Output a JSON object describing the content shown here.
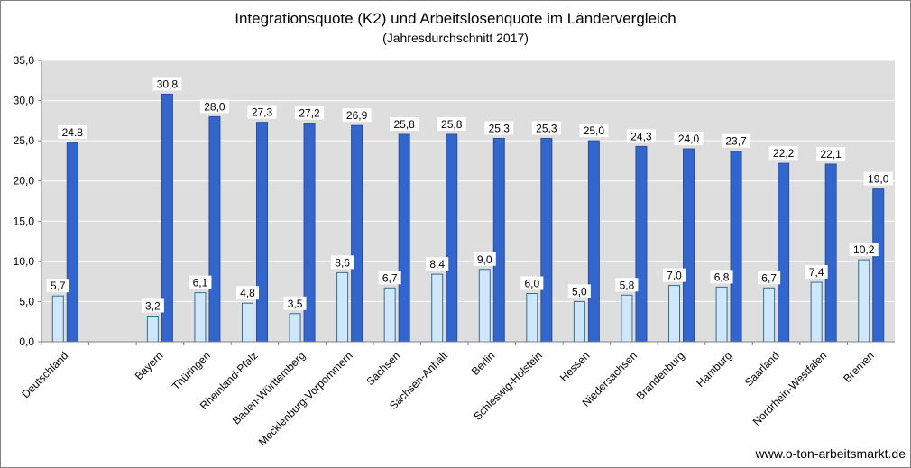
{
  "title": "Integrationsquote (K2)  und Arbeitslosenquote im Ländervergleich",
  "subtitle": "(Jahresdurchschnitt  2017)",
  "credit": "www.o-ton-arbeitsmarkt.de",
  "chart_data": {
    "type": "bar",
    "categories": [
      "Deutschland",
      "",
      "Bayern",
      "Thüringen",
      "Rheinland-Pfalz",
      "Baden-Württemberg",
      "Mecklenburg-Vorpommern",
      "Sachsen",
      "Sachsen-Anhalt",
      "Berlin",
      "Schleswig-Holstein",
      "Hessen",
      "Niedersachsen",
      "Brandenburg",
      "Hamburg",
      "Saarland",
      "Nordrhein-Westfalen",
      "Bremen"
    ],
    "series": [
      {
        "color": "#cfe6fb",
        "values": [
          5.7,
          null,
          3.2,
          6.1,
          4.8,
          3.5,
          8.6,
          6.7,
          8.4,
          9.0,
          6.0,
          5.0,
          5.8,
          7.0,
          6.8,
          6.7,
          7.4,
          10.2
        ],
        "labels": [
          "5,7",
          "",
          "3,2",
          "6,1",
          "4,8",
          "3,5",
          "8,6",
          "6,7",
          "8,4",
          "9,0",
          "6,0",
          "5,0",
          "5,8",
          "7,0",
          "6,8",
          "6,7",
          "7,4",
          "10,2"
        ]
      },
      {
        "color": "#3366cc",
        "values": [
          24.8,
          null,
          30.8,
          28.0,
          27.3,
          27.2,
          26.9,
          25.8,
          25.8,
          25.3,
          25.3,
          25.0,
          24.3,
          24.0,
          23.7,
          22.2,
          22.1,
          19.0
        ],
        "labels": [
          "24.8",
          "",
          "30,8",
          "28,0",
          "27,3",
          "27,2",
          "26,9",
          "25,8",
          "25,8",
          "25,3",
          "25,3",
          "25,0",
          "24,3",
          "24,0",
          "23,7",
          "22,2",
          "22,1",
          "19,0"
        ]
      }
    ],
    "ylim": [
      0,
      35
    ],
    "yticks": [
      0,
      5,
      10,
      15,
      20,
      25,
      30,
      35
    ],
    "ytick_labels": [
      "0,0",
      "5,0",
      "10,0",
      "15,0",
      "20,0",
      "25,0",
      "30,0",
      "35,0"
    ],
    "grid": true,
    "xlabel": "",
    "ylabel": ""
  }
}
